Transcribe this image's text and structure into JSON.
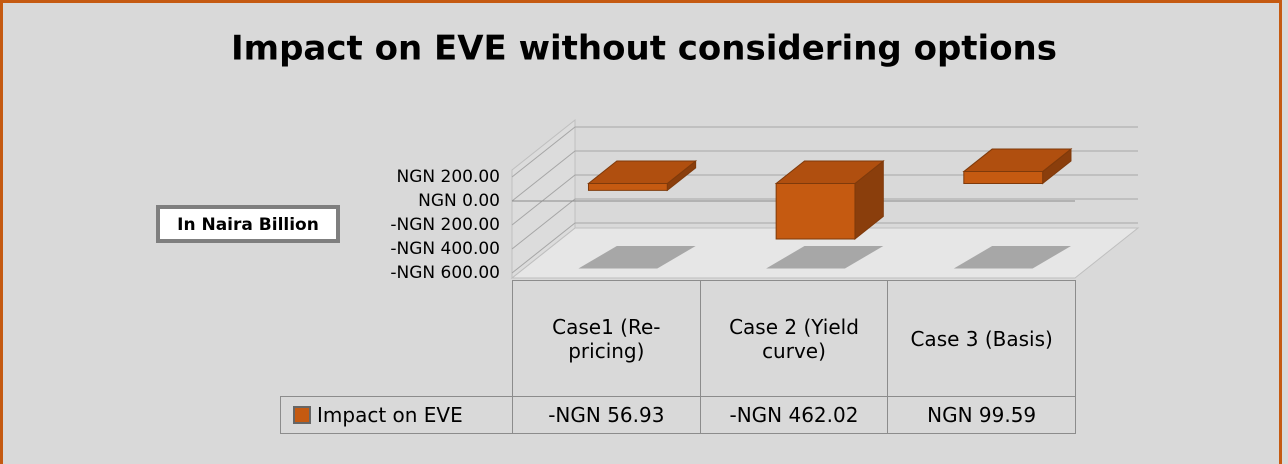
{
  "chart_data": {
    "type": "bar3d",
    "title": "Impact on EVE without considering options",
    "y_axis_label": "In Naira Billion",
    "categories": [
      "Case1 (Re-pricing)",
      "Case 2 (Yield curve)",
      "Case 3 (Basis)"
    ],
    "series": [
      {
        "name": "Impact on EVE",
        "color": "#c55a11",
        "values": [
          -56.93,
          -462.02,
          99.59
        ],
        "value_labels": [
          "-NGN 56.93",
          "-NGN 462.02",
          "NGN 99.59"
        ]
      }
    ],
    "ylim": [
      -600,
      200
    ],
    "yticks": [
      {
        "value": 200,
        "label": "NGN 200.00"
      },
      {
        "value": 0,
        "label": "NGN 0.00"
      },
      {
        "value": -200,
        "label": "-NGN 200.00"
      },
      {
        "value": -400,
        "label": "-NGN 400.00"
      },
      {
        "value": -600,
        "label": "-NGN 600.00"
      }
    ],
    "grid": true,
    "data_table": true
  }
}
